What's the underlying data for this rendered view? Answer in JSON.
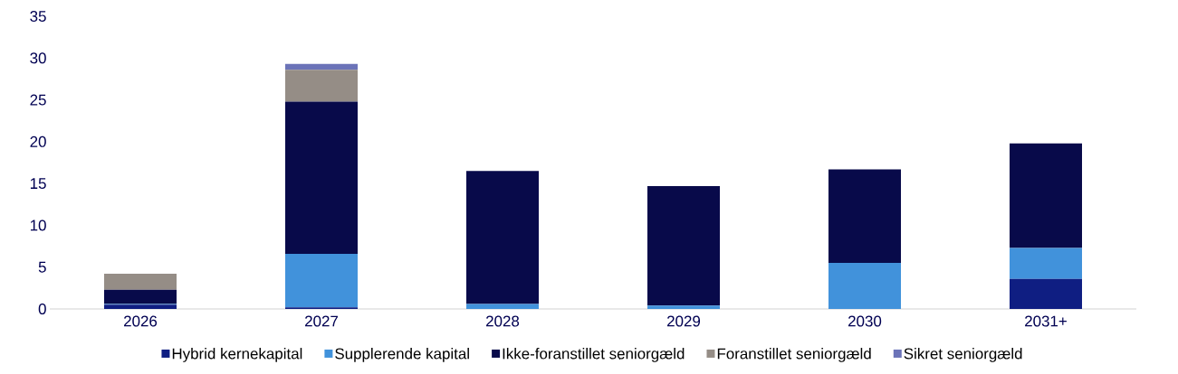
{
  "chart_data": {
    "type": "bar",
    "stacked": true,
    "categories": [
      "2026",
      "2027",
      "2028",
      "2029",
      "2030",
      "2031+"
    ],
    "series": [
      {
        "name": "Hybrid kernekapital",
        "color": "#0f1e82",
        "values": [
          0.5,
          0.2,
          0,
          0,
          0,
          3.6
        ]
      },
      {
        "name": "Supplerende kapital",
        "color": "#4192db",
        "values": [
          0.1,
          6.4,
          0.6,
          0.4,
          5.5,
          3.7
        ]
      },
      {
        "name": "Ikke-foranstillet seniorgæld",
        "color": "#080a4a",
        "values": [
          1.7,
          18.2,
          15.9,
          14.3,
          11.2,
          12.5
        ]
      },
      {
        "name": "Foranstillet seniorgæld",
        "color": "#958d86",
        "values": [
          1.9,
          3.8,
          0,
          0,
          0,
          0
        ]
      },
      {
        "name": "Sikret seniorgæld",
        "color": "#6b73b8",
        "values": [
          0,
          0.7,
          0,
          0,
          0,
          0
        ]
      }
    ],
    "ylim": [
      0,
      35
    ],
    "yticks": [
      0,
      5,
      10,
      15,
      20,
      25,
      30,
      35
    ],
    "legend": "bottom"
  }
}
